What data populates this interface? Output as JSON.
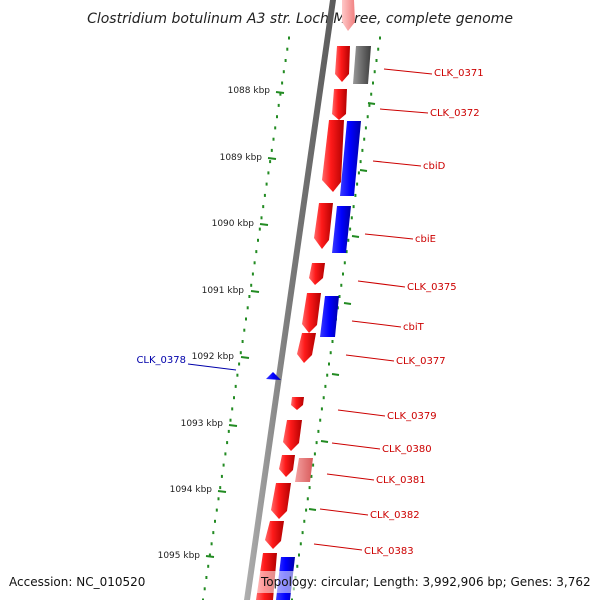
{
  "title": "Clostridium botulinum A3 str. Loch Maree, complete genome",
  "accession": "Accession: NC_010520",
  "topology": "Topology: circular; Length: 3,992,906 bp; Genes: 3,762",
  "colors": {
    "forward": "#ff0000",
    "reverse": "#0000ff",
    "pseudo": "#666666",
    "faded_forward": "#f08080",
    "backbone": "#808080",
    "ruler": "#228b22",
    "label_forward": "#cc0000",
    "label_reverse": "#0000aa"
  },
  "ruler_labels": [
    "1088 kbp",
    "1089 kbp",
    "1090 kbp",
    "1091 kbp",
    "1092 kbp",
    "1093 kbp",
    "1094 kbp",
    "1095 kbp"
  ],
  "gene_labels": [
    {
      "text": "CLK_0371",
      "strand": "forward"
    },
    {
      "text": "CLK_0372",
      "strand": "forward"
    },
    {
      "text": "cbiD",
      "strand": "forward"
    },
    {
      "text": "cbiE",
      "strand": "forward"
    },
    {
      "text": "CLK_0375",
      "strand": "forward"
    },
    {
      "text": "cbiT",
      "strand": "forward"
    },
    {
      "text": "CLK_0377",
      "strand": "forward"
    },
    {
      "text": "CLK_0378",
      "strand": "reverse"
    },
    {
      "text": "CLK_0379",
      "strand": "forward"
    },
    {
      "text": "CLK_0380",
      "strand": "forward"
    },
    {
      "text": "CLK_0381",
      "strand": "forward"
    },
    {
      "text": "CLK_0382",
      "strand": "forward"
    },
    {
      "text": "CLK_0383",
      "strand": "forward"
    }
  ]
}
